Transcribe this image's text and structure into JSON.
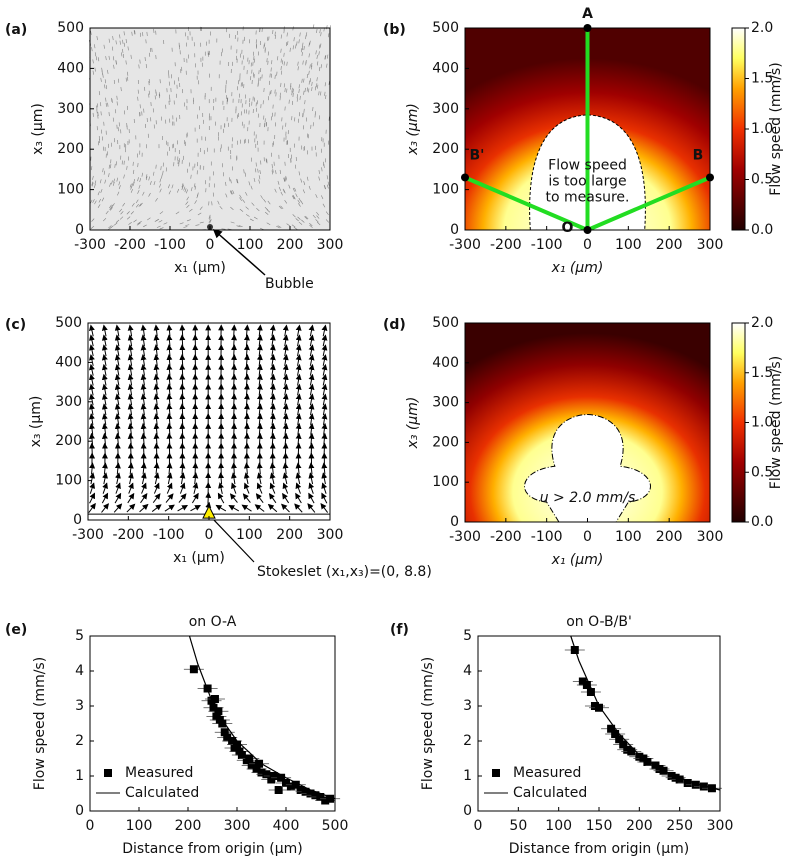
{
  "chart_data": [
    {
      "type": "image",
      "panel_label": "(a)",
      "xlabel": "x₁ (μm)",
      "ylabel": "x₃ (μm)",
      "xlim": [
        -300,
        300
      ],
      "xticks": [
        -300,
        -200,
        -100,
        0,
        100,
        200,
        300
      ],
      "ylim": [
        0,
        500
      ],
      "yticks": [
        0,
        100,
        200,
        300,
        400,
        500
      ],
      "annotation": "Bubble"
    },
    {
      "type": "heatmap",
      "panel_label": "(b)",
      "xlabel": "x₁ (μm)",
      "ylabel": "x₃ (μm)",
      "xlim": [
        -300,
        300
      ],
      "xticks": [
        -300,
        -200,
        -100,
        0,
        100,
        200,
        300
      ],
      "ylim": [
        0,
        500
      ],
      "yticks": [
        0,
        100,
        200,
        300,
        400,
        500
      ],
      "colorbar_label": "Flow speed (mm/s)",
      "clim": [
        0,
        2
      ],
      "cticks": [
        {
          "value": 0,
          "label": "0.0"
        },
        {
          "value": 0.5,
          "label": "0.5"
        },
        {
          "value": 1,
          "label": "1.0"
        },
        {
          "value": 1.5,
          "label": "1.5"
        },
        {
          "value": 2,
          "label": "2.0"
        }
      ],
      "points": [
        "A",
        "B",
        "B'",
        "O"
      ],
      "note": [
        "Flow speed",
        "is too large",
        "to measure."
      ]
    },
    {
      "type": "quiver",
      "panel_label": "(c)",
      "xlabel": "x₁ (μm)",
      "ylabel": "x₃ (μm)",
      "xlim": [
        -300,
        300
      ],
      "xticks": [
        -300,
        -200,
        -100,
        0,
        100,
        200,
        300
      ],
      "ylim": [
        0,
        500
      ],
      "yticks": [
        0,
        100,
        200,
        300,
        400,
        500
      ],
      "annotation": "Stokeslet (x₁,x₃)=(0, 8.8)"
    },
    {
      "type": "heatmap",
      "panel_label": "(d)",
      "xlabel": "x₁ (μm)",
      "ylabel": "x₃ (μm)",
      "xlim": [
        -300,
        300
      ],
      "xticks": [
        -300,
        -200,
        -100,
        0,
        100,
        200,
        300
      ],
      "ylim": [
        0,
        500
      ],
      "yticks": [
        0,
        100,
        200,
        300,
        400,
        500
      ],
      "colorbar_label": "Flow speed (mm/s)",
      "clim": [
        0,
        2
      ],
      "cticks": [
        {
          "value": 0,
          "label": "0.0"
        },
        {
          "value": 0.5,
          "label": "0.5"
        },
        {
          "value": 1,
          "label": "1.0"
        },
        {
          "value": 1.5,
          "label": "1.5"
        },
        {
          "value": 2,
          "label": "2.0"
        }
      ],
      "note": [
        "u > 2.0 mm/s"
      ]
    },
    {
      "type": "scatter",
      "panel_label": "(e)",
      "title": "on O-A",
      "xlabel": "Distance from origin (μm)",
      "ylabel": "Flow speed (mm/s)",
      "xlim": [
        0,
        500
      ],
      "xticks": [
        0,
        100,
        200,
        300,
        400,
        500
      ],
      "ylim": [
        0,
        5
      ],
      "yticks": [
        0,
        1,
        2,
        3,
        4,
        5
      ],
      "legend": "lower left",
      "series": [
        {
          "name": "Measured",
          "color": "#000000",
          "style": "markers",
          "x": [
            212,
            240,
            248,
            252,
            255,
            258,
            262,
            265,
            270,
            275,
            280,
            290,
            295,
            300,
            305,
            310,
            320,
            325,
            330,
            340,
            345,
            350,
            360,
            370,
            375,
            385,
            390,
            400,
            410,
            420,
            430,
            440,
            450,
            460,
            470,
            480,
            490
          ],
          "values": [
            4.05,
            3.5,
            3.15,
            2.95,
            3.2,
            2.7,
            2.85,
            2.6,
            2.5,
            2.25,
            2.1,
            2.0,
            1.8,
            1.9,
            1.7,
            1.6,
            1.45,
            1.5,
            1.3,
            1.2,
            1.35,
            1.1,
            1.05,
            0.9,
            1.0,
            0.6,
            0.95,
            0.8,
            0.7,
            0.75,
            0.6,
            0.55,
            0.5,
            0.45,
            0.4,
            0.3,
            0.35
          ]
        },
        {
          "name": "Calculated",
          "color": "#000000",
          "style": "line",
          "x": [
            203,
            220,
            250,
            275,
            300,
            350,
            400,
            450,
            500
          ],
          "values": [
            5,
            4.2,
            3.1,
            2.5,
            2.0,
            1.35,
            0.95,
            0.6,
            0.35
          ]
        }
      ]
    },
    {
      "type": "scatter",
      "panel_label": "(f)",
      "title": "on O-B/B'",
      "xlabel": "Distance from origin (μm)",
      "ylabel": "Flow speed (mm/s)",
      "xlim": [
        0,
        300
      ],
      "xticks": [
        0,
        50,
        100,
        150,
        200,
        250,
        300
      ],
      "ylim": [
        0,
        5
      ],
      "yticks": [
        0,
        1,
        2,
        3,
        4,
        5
      ],
      "legend": "lower left",
      "series": [
        {
          "name": "Measured",
          "color": "#000000",
          "style": "markers",
          "x": [
            120,
            130,
            135,
            140,
            145,
            150,
            165,
            170,
            175,
            180,
            185,
            190,
            200,
            205,
            210,
            220,
            225,
            230,
            240,
            245,
            250,
            260,
            270,
            280,
            290
          ],
          "values": [
            4.6,
            3.7,
            3.6,
            3.4,
            3.0,
            2.95,
            2.35,
            2.2,
            2.05,
            1.9,
            1.75,
            1.7,
            1.55,
            1.5,
            1.4,
            1.3,
            1.2,
            1.15,
            1.0,
            0.95,
            0.9,
            0.8,
            0.75,
            0.7,
            0.65
          ]
        },
        {
          "name": "Calculated",
          "color": "#000000",
          "style": "line",
          "x": [
            115,
            125,
            150,
            175,
            200,
            225,
            250,
            275,
            300
          ],
          "values": [
            5,
            4.3,
            3.0,
            2.2,
            1.6,
            1.2,
            0.95,
            0.75,
            0.6
          ]
        }
      ]
    }
  ]
}
